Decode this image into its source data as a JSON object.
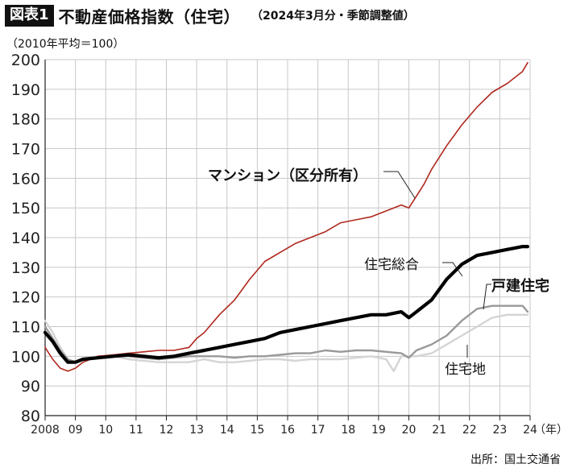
{
  "header": {
    "badge": "図表1",
    "title": "不動産価格指数（住宅）",
    "subtitle": "（2024年3月分・季節調整値）"
  },
  "unit_label": "（2010年平均＝100）",
  "source": "出所：国土交通省",
  "colors": {
    "mansion": "#b0281e",
    "sogo": "#000000",
    "kodate": "#999999",
    "takuchi": "#d4d4d4",
    "grid": "#c8c8c8",
    "axis": "#222222"
  },
  "chart_data": {
    "type": "line",
    "title": "不動産価格指数（住宅）",
    "ylabel": "（2010年平均＝100）",
    "xlabel": "（年）",
    "ylim": [
      80,
      200
    ],
    "xlim": [
      2008.25,
      2024.25
    ],
    "grid": true,
    "y_ticks": [
      "80",
      "90",
      "100",
      "110",
      "120",
      "130",
      "140",
      "150",
      "160",
      "170",
      "180",
      "190",
      "200"
    ],
    "x_ticks": [
      {
        "x": 2008.25,
        "label": "2008"
      },
      {
        "x": 2009.25,
        "label": "09"
      },
      {
        "x": 2010.25,
        "label": "10"
      },
      {
        "x": 2011.25,
        "label": "11"
      },
      {
        "x": 2012.25,
        "label": "12"
      },
      {
        "x": 2013.25,
        "label": "13"
      },
      {
        "x": 2014.25,
        "label": "14"
      },
      {
        "x": 2015.25,
        "label": "15"
      },
      {
        "x": 2016.25,
        "label": "16"
      },
      {
        "x": 2017.25,
        "label": "17"
      },
      {
        "x": 2018.25,
        "label": "18"
      },
      {
        "x": 2019.25,
        "label": "19"
      },
      {
        "x": 2020.25,
        "label": "20"
      },
      {
        "x": 2021.25,
        "label": "21"
      },
      {
        "x": 2022.25,
        "label": "22"
      },
      {
        "x": 2023.25,
        "label": "23"
      },
      {
        "x": 2024.25,
        "label": "24"
      }
    ],
    "x_unit_label": "（年）",
    "series": [
      {
        "name": "マンション（区分所有）",
        "x": [
          2008.25,
          2008.5,
          2008.75,
          2009.0,
          2009.25,
          2009.5,
          2009.75,
          2010.0,
          2010.5,
          2011.0,
          2011.5,
          2012.0,
          2012.5,
          2013.0,
          2013.25,
          2013.5,
          2014.0,
          2014.5,
          2015.0,
          2015.5,
          2016.0,
          2016.5,
          2017.0,
          2017.5,
          2018.0,
          2018.5,
          2019.0,
          2019.5,
          2020.0,
          2020.25,
          2020.5,
          2020.75,
          2021.0,
          2021.5,
          2022.0,
          2022.5,
          2023.0,
          2023.5,
          2024.0,
          2024.17
        ],
        "y": [
          103,
          99,
          96,
          95,
          96,
          98,
          99,
          100,
          100.5,
          101,
          101.5,
          102,
          102,
          103,
          106,
          108,
          114,
          119,
          126,
          132,
          135,
          138,
          140,
          142,
          145,
          146,
          147,
          149,
          151,
          150,
          154,
          158,
          163,
          171,
          178,
          184,
          189,
          192,
          196,
          199
        ]
      },
      {
        "name": "住宅総合",
        "x": [
          2008.25,
          2008.5,
          2008.75,
          2009.0,
          2009.25,
          2009.5,
          2010.0,
          2010.5,
          2011.0,
          2011.5,
          2012.0,
          2012.5,
          2013.0,
          2013.5,
          2014.0,
          2014.5,
          2015.0,
          2015.5,
          2016.0,
          2016.5,
          2017.0,
          2017.5,
          2018.0,
          2018.5,
          2019.0,
          2019.5,
          2020.0,
          2020.25,
          2020.5,
          2021.0,
          2021.5,
          2022.0,
          2022.5,
          2023.0,
          2023.5,
          2024.0,
          2024.17
        ],
        "y": [
          108,
          105,
          101,
          98,
          98,
          99,
          99.5,
          100,
          100.5,
          100,
          99.5,
          100,
          101,
          102,
          103,
          104,
          105,
          106,
          108,
          109,
          110,
          111,
          112,
          113,
          114,
          114,
          115,
          113,
          115,
          119,
          126,
          131,
          134,
          135,
          136,
          137,
          137
        ]
      },
      {
        "name": "戸建住宅",
        "x": [
          2008.25,
          2008.5,
          2008.75,
          2009.0,
          2009.25,
          2009.5,
          2010.0,
          2010.5,
          2011.0,
          2011.5,
          2012.0,
          2012.5,
          2013.0,
          2013.5,
          2014.0,
          2014.5,
          2015.0,
          2015.5,
          2016.0,
          2016.5,
          2017.0,
          2017.5,
          2018.0,
          2018.5,
          2019.0,
          2019.5,
          2020.0,
          2020.25,
          2020.5,
          2021.0,
          2021.5,
          2022.0,
          2022.5,
          2023.0,
          2023.5,
          2024.0,
          2024.17
        ],
        "y": [
          110,
          106,
          102,
          99,
          98,
          99,
          99.5,
          100,
          100,
          99.5,
          99,
          99.5,
          100,
          100,
          100,
          99.5,
          100,
          100,
          100.5,
          101,
          101,
          102,
          101.5,
          102,
          102,
          101.5,
          101,
          99.5,
          102,
          104,
          107,
          112,
          116,
          117,
          117,
          117,
          115
        ]
      },
      {
        "name": "住宅地",
        "x": [
          2008.25,
          2008.5,
          2008.75,
          2009.0,
          2009.25,
          2009.5,
          2010.0,
          2010.5,
          2011.0,
          2011.5,
          2012.0,
          2012.5,
          2013.0,
          2013.5,
          2014.0,
          2014.5,
          2015.0,
          2015.5,
          2016.0,
          2016.5,
          2017.0,
          2017.5,
          2018.0,
          2018.5,
          2019.0,
          2019.5,
          2019.75,
          2020.0,
          2020.5,
          2021.0,
          2021.5,
          2022.0,
          2022.5,
          2023.0,
          2023.5,
          2024.0,
          2024.17
        ],
        "y": [
          112,
          108,
          103,
          99,
          98,
          99,
          100,
          100,
          99,
          98.5,
          98,
          98,
          98,
          99,
          98,
          98,
          98.5,
          99,
          99,
          98.5,
          99,
          99,
          99,
          99.5,
          100,
          99,
          95,
          100,
          100,
          101,
          104,
          107,
          110,
          113,
          114,
          114,
          114
        ]
      }
    ],
    "annotations": [
      {
        "text": "マンション（区分所有）",
        "series": "マンション（区分所有）"
      },
      {
        "text": "住宅総合",
        "series": "住宅総合"
      },
      {
        "text": "戸建住宅",
        "series": "戸建住宅"
      },
      {
        "text": "住宅地",
        "series": "住宅地"
      }
    ]
  }
}
